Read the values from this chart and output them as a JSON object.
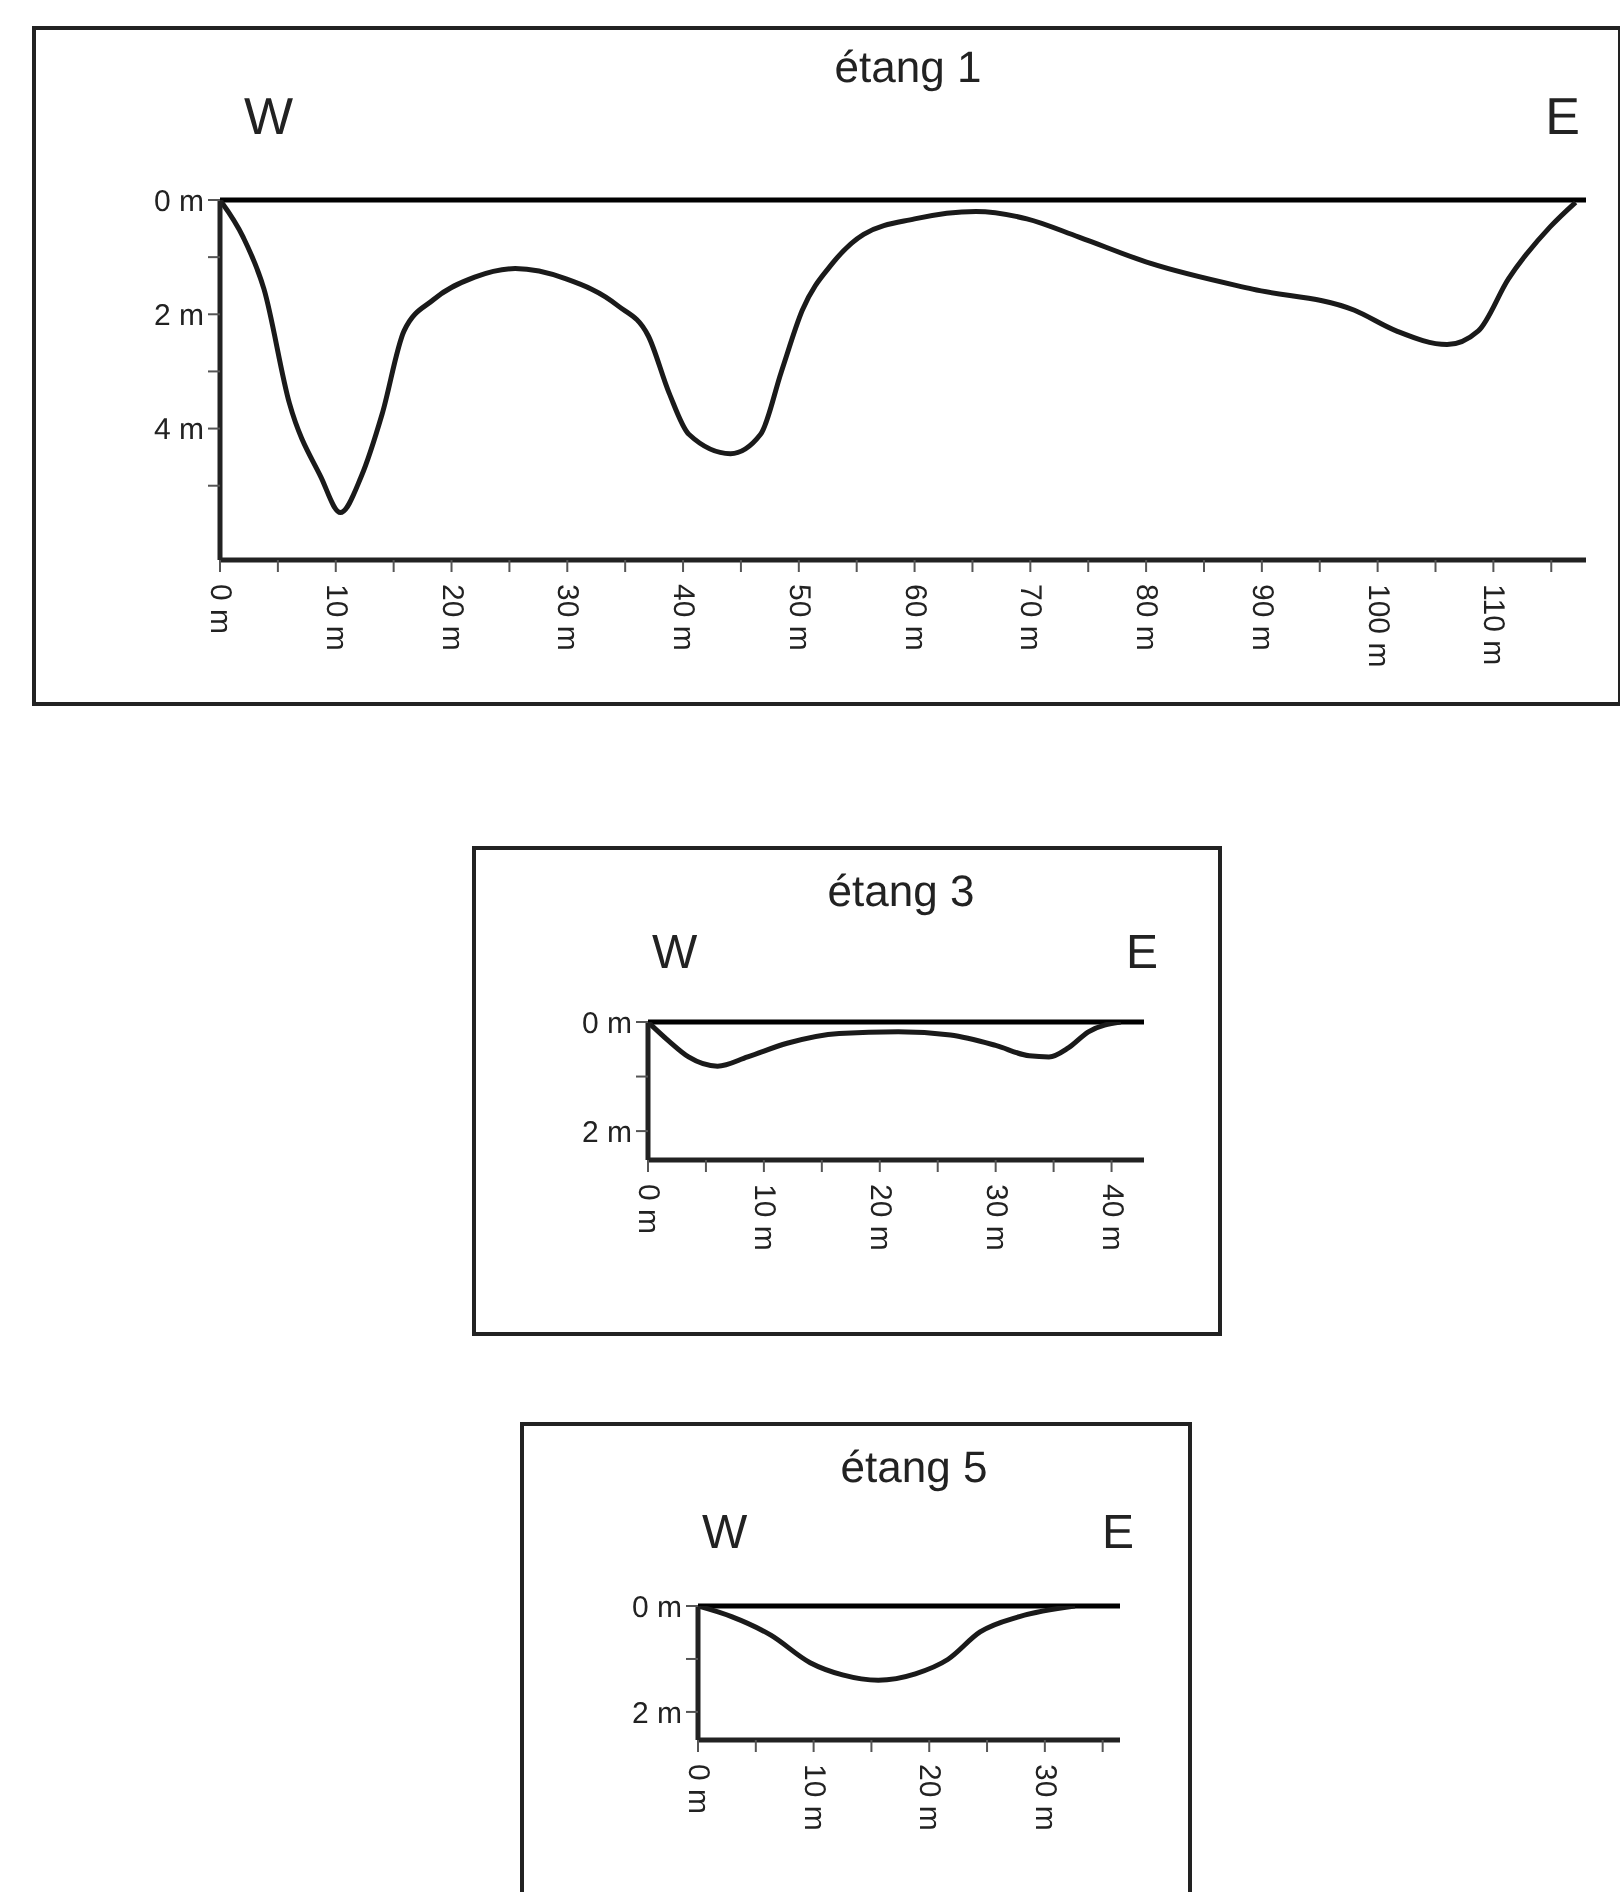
{
  "chart_data": [
    {
      "type": "line",
      "title": "étang 1",
      "annotations": [
        "W",
        "E"
      ],
      "xlim": [
        0,
        118
      ],
      "ylim": [
        6.3,
        0
      ],
      "xticks": [
        {
          "value": 0,
          "label": "0 m"
        },
        {
          "value": 5,
          "label": null
        },
        {
          "value": 10,
          "label": "10 m"
        },
        {
          "value": 15,
          "label": null
        },
        {
          "value": 20,
          "label": "20 m"
        },
        {
          "value": 25,
          "label": null
        },
        {
          "value": 30,
          "label": "30 m"
        },
        {
          "value": 35,
          "label": null
        },
        {
          "value": 40,
          "label": "40 m"
        },
        {
          "value": 45,
          "label": null
        },
        {
          "value": 50,
          "label": "50 m"
        },
        {
          "value": 55,
          "label": null
        },
        {
          "value": 60,
          "label": "60 m"
        },
        {
          "value": 65,
          "label": null
        },
        {
          "value": 70,
          "label": "70 m"
        },
        {
          "value": 75,
          "label": null
        },
        {
          "value": 80,
          "label": "80 m"
        },
        {
          "value": 85,
          "label": null
        },
        {
          "value": 90,
          "label": "90 m"
        },
        {
          "value": 95,
          "label": null
        },
        {
          "value": 100,
          "label": "100 m"
        },
        {
          "value": 105,
          "label": null
        },
        {
          "value": 110,
          "label": "110 m"
        },
        {
          "value": 115,
          "label": null
        }
      ],
      "yticks": [
        {
          "value": 0,
          "label": "0 m"
        },
        {
          "value": 1,
          "label": null
        },
        {
          "value": 2,
          "label": "2 m"
        },
        {
          "value": 3,
          "label": null
        },
        {
          "value": 4,
          "label": "4 m"
        },
        {
          "value": 5,
          "label": null
        }
      ],
      "ref_lines": [
        {
          "axis": "y",
          "value": 0,
          "color": "#000000"
        }
      ],
      "grid": false,
      "legend": false,
      "marker": "none",
      "line_style": "solid",
      "series": [
        {
          "color": "#1a1a1a",
          "x": [
            0,
            2,
            3.8,
            6,
            8.7,
            10.4,
            12.2,
            14,
            15.9,
            18.4,
            22,
            25.5,
            29.9,
            34.3,
            37,
            38.8,
            40.5,
            44.1,
            46.7,
            48.5,
            50.3,
            52.9,
            55.6,
            60,
            65.3,
            69.7,
            74.2,
            80.4,
            89.2,
            98,
            101.6,
            106,
            108.7,
            111.3,
            114.9,
            117.1
          ],
          "values": [
            0,
            0.65,
            1.56,
            3.56,
            4.84,
            5.47,
            4.84,
            3.75,
            2.29,
            1.75,
            1.35,
            1.2,
            1.38,
            1.84,
            2.38,
            3.38,
            4.1,
            4.44,
            4.1,
            3.0,
            1.93,
            1.11,
            0.6,
            0.33,
            0.2,
            0.33,
            0.65,
            1.11,
            1.56,
            1.93,
            2.29,
            2.53,
            2.29,
            1.38,
            0.47,
            0.04
          ]
        }
      ]
    },
    {
      "type": "line",
      "title": "étang 3",
      "annotations": [
        "W",
        "E"
      ],
      "xlim": [
        0,
        42.8
      ],
      "ylim": [
        2.53,
        0
      ],
      "xticks": [
        {
          "value": 0,
          "label": "0 m"
        },
        {
          "value": 5,
          "label": null
        },
        {
          "value": 10,
          "label": "10 m"
        },
        {
          "value": 15,
          "label": null
        },
        {
          "value": 20,
          "label": "20 m"
        },
        {
          "value": 25,
          "label": null
        },
        {
          "value": 30,
          "label": "30 m"
        },
        {
          "value": 35,
          "label": null
        },
        {
          "value": 40,
          "label": "40 m"
        }
      ],
      "yticks": [
        {
          "value": 0,
          "label": "0 m"
        },
        {
          "value": 1,
          "label": null
        },
        {
          "value": 2,
          "label": "2 m"
        }
      ],
      "ref_lines": [
        {
          "axis": "y",
          "value": 0,
          "color": "#000000"
        }
      ],
      "grid": false,
      "legend": false,
      "marker": "none",
      "line_style": "solid",
      "series": [
        {
          "color": "#1a1a1a",
          "x": [
            0,
            1.8,
            3.5,
            6,
            8.6,
            12,
            16.5,
            21.6,
            26.1,
            30,
            32.9,
            34.6,
            36.3,
            38,
            40.8
          ],
          "values": [
            0,
            0.35,
            0.64,
            0.81,
            0.64,
            0.39,
            0.21,
            0.18,
            0.24,
            0.43,
            0.62,
            0.64,
            0.47,
            0.18,
            0
          ]
        }
      ]
    },
    {
      "type": "line",
      "title": "étang 5",
      "annotations": [
        "W",
        "E"
      ],
      "xlim": [
        0,
        36.5
      ],
      "ylim": [
        2.53,
        0
      ],
      "xticks": [
        {
          "value": 0,
          "label": "0 m"
        },
        {
          "value": 5,
          "label": null
        },
        {
          "value": 10,
          "label": "10 m"
        },
        {
          "value": 15,
          "label": null
        },
        {
          "value": 20,
          "label": "20 m"
        },
        {
          "value": 25,
          "label": null
        },
        {
          "value": 30,
          "label": "30 m"
        },
        {
          "value": 35,
          "label": null
        }
      ],
      "yticks": [
        {
          "value": 0,
          "label": "0 m"
        },
        {
          "value": 1,
          "label": null
        },
        {
          "value": 2,
          "label": "2 m"
        }
      ],
      "ref_lines": [
        {
          "axis": "y",
          "value": 0,
          "color": "#000000"
        }
      ],
      "grid": false,
      "legend": false,
      "marker": "none",
      "line_style": "solid",
      "series": [
        {
          "color": "#1a1a1a",
          "x": [
            0,
            2.9,
            6.3,
            9.7,
            12.5,
            15.6,
            18.8,
            21.6,
            24.4,
            27.8,
            32.6
          ],
          "values": [
            0,
            0.2,
            0.55,
            1.07,
            1.3,
            1.4,
            1.28,
            1.01,
            0.49,
            0.2,
            0
          ]
        }
      ]
    }
  ]
}
